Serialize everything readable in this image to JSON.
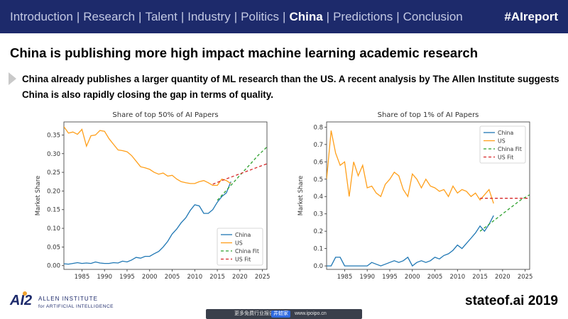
{
  "header": {
    "nav_items": [
      {
        "label": "Introduction",
        "active": false
      },
      {
        "label": "Research",
        "active": false
      },
      {
        "label": "Talent",
        "active": false
      },
      {
        "label": "Industry",
        "active": false
      },
      {
        "label": "Politics",
        "active": false
      },
      {
        "label": "China",
        "active": true
      },
      {
        "label": "Predictions",
        "active": false
      },
      {
        "label": "Conclusion",
        "active": false
      }
    ],
    "separator": "|",
    "hashtag": "#AIreport"
  },
  "headline": "China is publishing more high impact machine learning academic research",
  "subtitle": "China already publishes a larger quantity of ML research than the US. A recent analysis by The Allen Institute suggests China is also rapidly closing the gap in terms of quality.",
  "footer": {
    "logo_mark": "AI2",
    "logo_line1": "ALLEN INSTITUTE",
    "logo_line2": "for ARTIFICIAL INTELLIGENCE",
    "credit": "stateof.ai 2019",
    "promo_text": "更多免费行业报告",
    "promo_brand": "井蛙家",
    "promo_url": "www.ipoipo.cn"
  },
  "colors": {
    "china": "#1f77b4",
    "us": "#ff9f1a",
    "china_fit": "#2ca02c",
    "us_fit": "#d62728",
    "header_bg": "#1d2a6b"
  },
  "chart_data": [
    {
      "type": "line",
      "title": "Share of top 50% of AI Papers",
      "xlabel": "",
      "ylabel": "Market Share",
      "xlim": [
        1981,
        2026
      ],
      "ylim": [
        -0.01,
        0.385
      ],
      "xticks": [
        1985,
        1990,
        1995,
        2000,
        2005,
        2010,
        2015,
        2020,
        2025
      ],
      "yticks": [
        0.0,
        0.05,
        0.1,
        0.15,
        0.2,
        0.25,
        0.3,
        0.35
      ],
      "ytick_labels": [
        "0.00",
        "0.05",
        "0.10",
        "0.15",
        "0.20",
        "0.25",
        "0.30",
        "0.35"
      ],
      "legend": [
        "China",
        "US",
        "China Fit",
        "US Fit"
      ],
      "legend_position": "lower-right",
      "series": [
        {
          "name": "China",
          "style": "solid",
          "x": [
            1981,
            1982,
            1983,
            1984,
            1985,
            1986,
            1987,
            1988,
            1989,
            1990,
            1991,
            1992,
            1993,
            1994,
            1995,
            1996,
            1997,
            1998,
            1999,
            2000,
            2001,
            2002,
            2003,
            2004,
            2005,
            2006,
            2007,
            2008,
            2009,
            2010,
            2011,
            2012,
            2013,
            2014,
            2015,
            2016,
            2017,
            2018
          ],
          "y": [
            0.005,
            0.004,
            0.006,
            0.008,
            0.006,
            0.007,
            0.006,
            0.01,
            0.007,
            0.006,
            0.006,
            0.008,
            0.007,
            0.012,
            0.01,
            0.015,
            0.022,
            0.02,
            0.025,
            0.025,
            0.032,
            0.038,
            0.05,
            0.065,
            0.085,
            0.098,
            0.115,
            0.128,
            0.148,
            0.163,
            0.16,
            0.14,
            0.14,
            0.15,
            0.17,
            0.185,
            0.195,
            0.225
          ]
        },
        {
          "name": "US",
          "style": "solid",
          "x": [
            1981,
            1982,
            1983,
            1984,
            1985,
            1986,
            1987,
            1988,
            1989,
            1990,
            1991,
            1992,
            1993,
            1994,
            1995,
            1996,
            1997,
            1998,
            1999,
            2000,
            2001,
            2002,
            2003,
            2004,
            2005,
            2006,
            2007,
            2008,
            2009,
            2010,
            2011,
            2012,
            2013,
            2014,
            2015,
            2016,
            2017,
            2018
          ],
          "y": [
            0.372,
            0.355,
            0.358,
            0.352,
            0.365,
            0.32,
            0.348,
            0.35,
            0.362,
            0.36,
            0.34,
            0.325,
            0.31,
            0.308,
            0.305,
            0.295,
            0.28,
            0.265,
            0.262,
            0.258,
            0.25,
            0.245,
            0.248,
            0.24,
            0.242,
            0.232,
            0.225,
            0.222,
            0.22,
            0.22,
            0.225,
            0.228,
            0.222,
            0.215,
            0.215,
            0.232,
            0.228,
            0.22
          ]
        },
        {
          "name": "China Fit",
          "style": "dashed",
          "x": [
            2015,
            2018,
            2020,
            2022,
            2024,
            2026
          ],
          "y": [
            0.175,
            0.215,
            0.242,
            0.268,
            0.295,
            0.318
          ]
        },
        {
          "name": "US Fit",
          "style": "dashed",
          "x": [
            2014,
            2016,
            2018,
            2020,
            2022,
            2024,
            2026
          ],
          "y": [
            0.218,
            0.228,
            0.237,
            0.246,
            0.255,
            0.264,
            0.273
          ]
        }
      ]
    },
    {
      "type": "line",
      "title": "Share of top 1% of AI Papers",
      "xlabel": "",
      "ylabel": "Market Share",
      "xlim": [
        1981,
        2026
      ],
      "ylim": [
        -0.02,
        0.83
      ],
      "xticks": [
        1985,
        1990,
        1995,
        2000,
        2005,
        2010,
        2015,
        2020,
        2025
      ],
      "yticks": [
        0.0,
        0.1,
        0.2,
        0.3,
        0.4,
        0.5,
        0.6,
        0.7,
        0.8
      ],
      "ytick_labels": [
        "0.0",
        "0.1",
        "0.2",
        "0.3",
        "0.4",
        "0.5",
        "0.6",
        "0.7",
        "0.8"
      ],
      "legend": [
        "China",
        "US",
        "China Fit",
        "US Fit"
      ],
      "legend_position": "upper-right",
      "series": [
        {
          "name": "China",
          "style": "solid",
          "x": [
            1981,
            1982,
            1983,
            1984,
            1985,
            1986,
            1987,
            1988,
            1989,
            1990,
            1991,
            1992,
            1993,
            1994,
            1995,
            1996,
            1997,
            1998,
            1999,
            2000,
            2001,
            2002,
            2003,
            2004,
            2005,
            2006,
            2007,
            2008,
            2009,
            2010,
            2011,
            2012,
            2013,
            2014,
            2015,
            2016,
            2017,
            2018
          ],
          "y": [
            0.0,
            0.0,
            0.05,
            0.05,
            0.0,
            0.0,
            0.0,
            0.0,
            0.0,
            0.0,
            0.02,
            0.01,
            0.0,
            0.01,
            0.02,
            0.03,
            0.02,
            0.03,
            0.05,
            0.0,
            0.02,
            0.03,
            0.02,
            0.03,
            0.05,
            0.04,
            0.06,
            0.07,
            0.09,
            0.12,
            0.1,
            0.13,
            0.16,
            0.19,
            0.23,
            0.2,
            0.24,
            0.29
          ]
        },
        {
          "name": "US",
          "style": "solid",
          "x": [
            1981,
            1982,
            1983,
            1984,
            1985,
            1986,
            1987,
            1988,
            1989,
            1990,
            1991,
            1992,
            1993,
            1994,
            1995,
            1996,
            1997,
            1998,
            1999,
            2000,
            2001,
            2002,
            2003,
            2004,
            2005,
            2006,
            2007,
            2008,
            2009,
            2010,
            2011,
            2012,
            2013,
            2014,
            2015,
            2016,
            2017,
            2018
          ],
          "y": [
            0.5,
            0.78,
            0.65,
            0.58,
            0.6,
            0.4,
            0.6,
            0.52,
            0.58,
            0.45,
            0.46,
            0.42,
            0.4,
            0.47,
            0.5,
            0.54,
            0.52,
            0.44,
            0.4,
            0.53,
            0.5,
            0.45,
            0.5,
            0.46,
            0.45,
            0.43,
            0.44,
            0.4,
            0.46,
            0.42,
            0.44,
            0.43,
            0.4,
            0.42,
            0.38,
            0.41,
            0.44,
            0.36
          ]
        },
        {
          "name": "China Fit",
          "style": "dashed",
          "x": [
            2015,
            2018,
            2021,
            2024,
            2026
          ],
          "y": [
            0.2,
            0.26,
            0.32,
            0.38,
            0.41
          ]
        },
        {
          "name": "US Fit",
          "style": "dashed",
          "x": [
            2015,
            2018,
            2021,
            2024,
            2026
          ],
          "y": [
            0.39,
            0.39,
            0.39,
            0.39,
            0.39
          ]
        }
      ]
    }
  ]
}
